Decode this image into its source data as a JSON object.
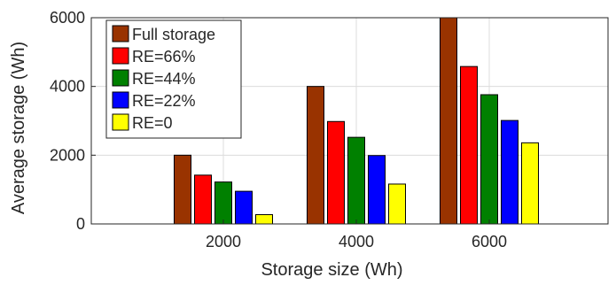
{
  "chart_data": {
    "type": "bar",
    "title": "",
    "xlabel": "Storage size (Wh)",
    "ylabel": "Average storage (Wh)",
    "categories": [
      "2000",
      "4000",
      "6000"
    ],
    "ylim": [
      0,
      6000
    ],
    "yticks": [
      "0",
      "2000",
      "4000",
      "6000"
    ],
    "grid": true,
    "legend_position": "top-left",
    "series": [
      {
        "name": "Full storage",
        "color": "#993300",
        "values": [
          2000,
          4000,
          6000
        ]
      },
      {
        "name": "RE=66%",
        "color": "#ff0000",
        "values": [
          1420,
          2980,
          4580
        ]
      },
      {
        "name": "RE=44%",
        "color": "#008000",
        "values": [
          1220,
          2520,
          3760
        ]
      },
      {
        "name": "RE=22%",
        "color": "#0000ff",
        "values": [
          950,
          1990,
          3010
        ]
      },
      {
        "name": "RE=0",
        "color": "#ffff00",
        "values": [
          270,
          1160,
          2360
        ]
      }
    ]
  }
}
